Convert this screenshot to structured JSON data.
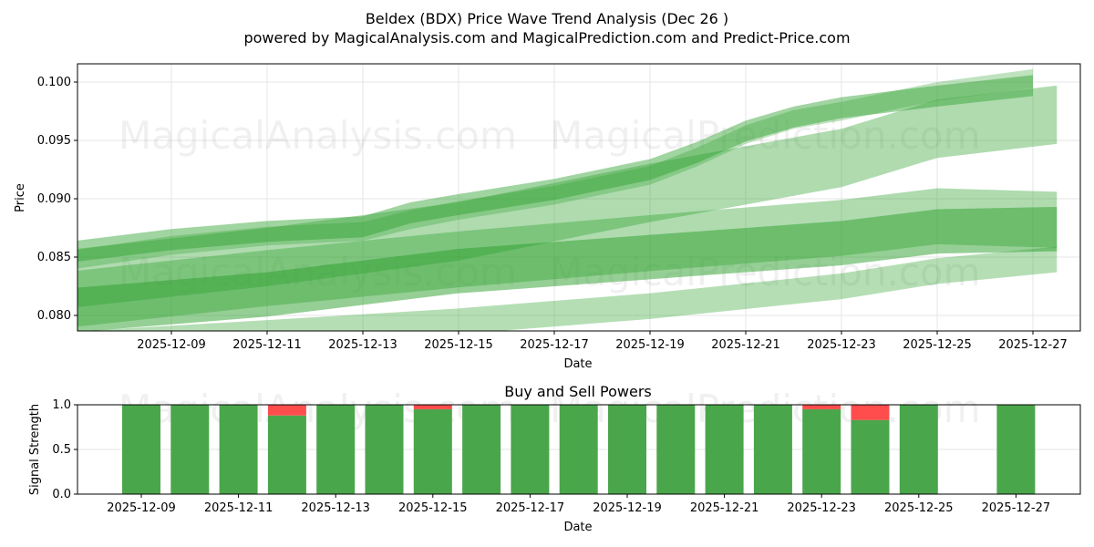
{
  "title": "Beldex (BDX) Price Wave Trend Analysis (Dec 26 )",
  "subtitle": "powered by MagicalAnalysis.com and MagicalPrediction.com and Predict-Price.com",
  "watermarks": [
    "MagicalAnalysis.com",
    "MagicalPrediction.com"
  ],
  "colors": {
    "band": "#2ca02c",
    "buy": "#4aa64a",
    "sell": "#ff4c4c"
  },
  "chart_data": [
    {
      "type": "area",
      "title": "",
      "xlabel": "Date",
      "ylabel": "Price",
      "ylim": [
        0.0785,
        0.1016
      ],
      "xlim_days": [
        -2.6,
        18.4
      ],
      "x_origin": "2025-12-09",
      "xticks": [
        "2025-12-09",
        "2025-12-11",
        "2025-12-13",
        "2025-12-15",
        "2025-12-17",
        "2025-12-19",
        "2025-12-21",
        "2025-12-23",
        "2025-12-25",
        "2025-12-27"
      ],
      "yticks": [
        "0.080",
        "0.085",
        "0.090",
        "0.095",
        "0.100"
      ],
      "grid": true,
      "bands": [
        {
          "name": "main-trend",
          "opacity": 0.45,
          "days": [
            -2,
            0,
            2,
            4,
            5,
            6,
            8,
            10,
            11,
            12,
            13,
            14,
            16,
            18
          ],
          "center": [
            0.0855,
            0.0865,
            0.0872,
            0.0876,
            0.0888,
            0.0895,
            0.0908,
            0.0925,
            0.094,
            0.0958,
            0.097,
            0.0978,
            0.0988,
            0.0997
          ],
          "half_width": 0.0009
        },
        {
          "name": "main-trend-2",
          "opacity": 0.3,
          "days": [
            -2,
            0,
            2,
            4,
            5,
            6,
            8,
            10,
            11,
            12,
            13,
            14,
            16,
            18
          ],
          "center": [
            0.0848,
            0.086,
            0.0868,
            0.0872,
            0.0882,
            0.089,
            0.0903,
            0.092,
            0.0936,
            0.0955,
            0.0968,
            0.0975,
            0.0992,
            0.1003
          ],
          "half_width": 0.0008
        },
        {
          "name": "forecast-wide",
          "opacity": 0.38,
          "days": [
            -2,
            2,
            6,
            10,
            14,
            16,
            18.5
          ],
          "center": [
            0.0832,
            0.085,
            0.0872,
            0.0905,
            0.0935,
            0.096,
            0.0972
          ],
          "half_width": 0.0025
        },
        {
          "name": "forecast-mid",
          "opacity": 0.38,
          "days": [
            -2.5,
            2,
            6,
            10,
            14,
            16,
            18.5
          ],
          "center": [
            0.0812,
            0.0832,
            0.0848,
            0.0862,
            0.0875,
            0.0885,
            0.0882
          ],
          "half_width": 0.0024
        },
        {
          "name": "forecast-dark",
          "opacity": 0.5,
          "days": [
            -2.5,
            2,
            6,
            10,
            14,
            16,
            18.5
          ],
          "center": [
            0.0803,
            0.0818,
            0.0838,
            0.085,
            0.0862,
            0.0872,
            0.0874
          ],
          "half_width": 0.0019
        },
        {
          "name": "forecast-low",
          "opacity": 0.35,
          "days": [
            -2.2,
            2,
            6,
            10,
            14,
            16,
            18.5
          ],
          "center": [
            0.0775,
            0.0785,
            0.0795,
            0.0808,
            0.0825,
            0.0838,
            0.0848
          ],
          "half_width": 0.0011
        }
      ]
    },
    {
      "type": "bar",
      "title": "Buy and Sell Powers",
      "xlabel": "Date",
      "ylabel": "Signal Strength",
      "ylim": [
        0,
        1
      ],
      "yticks": [
        "0.0",
        "0.5",
        "1.0"
      ],
      "xticks": [
        "2025-12-09",
        "2025-12-11",
        "2025-12-13",
        "2025-12-15",
        "2025-12-17",
        "2025-12-19",
        "2025-12-21",
        "2025-12-23",
        "2025-12-25",
        "2025-12-27"
      ],
      "categories": [
        "2025-12-09",
        "2025-12-10",
        "2025-12-11",
        "2025-12-12",
        "2025-12-13",
        "2025-12-14",
        "2025-12-15",
        "2025-12-16",
        "2025-12-17",
        "2025-12-18",
        "2025-12-19",
        "2025-12-20",
        "2025-12-21",
        "2025-12-22",
        "2025-12-23",
        "2025-12-24",
        "2025-12-25",
        "2025-12-27"
      ],
      "series": [
        {
          "name": "Buy",
          "values": [
            1,
            1,
            1,
            0.88,
            1,
            1,
            0.95,
            1,
            1,
            1,
            1,
            1,
            1,
            1,
            0.95,
            0.83,
            1,
            1
          ]
        },
        {
          "name": "Sell",
          "values": [
            0,
            0,
            0,
            0.12,
            0,
            0,
            0.05,
            0,
            0,
            0,
            0,
            0,
            0,
            0,
            0.05,
            0.17,
            0,
            0
          ]
        }
      ]
    }
  ]
}
